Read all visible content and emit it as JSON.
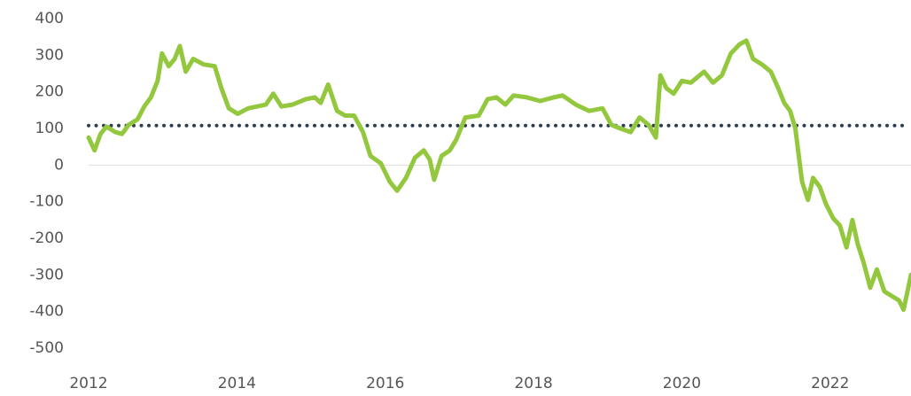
{
  "chart_data": {
    "type": "line",
    "x": [
      2012,
      2012.08,
      2012.16,
      2012.24,
      2012.36,
      2012.45,
      2012.54,
      2012.66,
      2012.75,
      2012.84,
      2012.93,
      2012.99,
      2013.08,
      2013.16,
      2013.23,
      2013.31,
      2013.41,
      2013.55,
      2013.7,
      2013.79,
      2013.89,
      2014.01,
      2014.15,
      2014.27,
      2014.39,
      2014.49,
      2014.6,
      2014.75,
      2014.93,
      2015.05,
      2015.13,
      2015.23,
      2015.35,
      2015.46,
      2015.58,
      2015.7,
      2015.8,
      2015.94,
      2016.06,
      2016.16,
      2016.28,
      2016.4,
      2016.52,
      2016.6,
      2016.66,
      2016.76,
      2016.87,
      2016.96,
      2017.08,
      2017.26,
      2017.38,
      2017.5,
      2017.62,
      2017.73,
      2017.91,
      2018.09,
      2018.27,
      2018.39,
      2018.57,
      2018.75,
      2018.93,
      2019.05,
      2019.17,
      2019.31,
      2019.43,
      2019.55,
      2019.65,
      2019.71,
      2019.79,
      2019.89,
      2020.0,
      2020.12,
      2020.3,
      2020.42,
      2020.54,
      2020.66,
      2020.78,
      2020.87,
      2020.96,
      2021.08,
      2021.2,
      2021.3,
      2021.38,
      2021.46,
      2021.53,
      2021.62,
      2021.7,
      2021.77,
      2021.86,
      2021.94,
      2022.04,
      2022.13,
      2022.22,
      2022.3,
      2022.37,
      2022.45,
      2022.54,
      2022.63,
      2022.73,
      2022.85,
      2022.93,
      2022.99,
      2023.09
    ],
    "values": [
      75,
      40,
      85,
      105,
      90,
      85,
      110,
      125,
      160,
      185,
      230,
      305,
      270,
      290,
      325,
      255,
      290,
      275,
      270,
      210,
      155,
      140,
      155,
      160,
      165,
      195,
      160,
      165,
      180,
      185,
      170,
      220,
      148,
      135,
      135,
      90,
      25,
      5,
      -45,
      -70,
      -35,
      20,
      40,
      15,
      -40,
      25,
      40,
      70,
      130,
      135,
      180,
      185,
      165,
      190,
      185,
      175,
      185,
      190,
      165,
      148,
      155,
      110,
      100,
      90,
      130,
      110,
      75,
      245,
      210,
      195,
      230,
      225,
      255,
      225,
      245,
      305,
      330,
      340,
      290,
      275,
      255,
      210,
      170,
      148,
      100,
      -45,
      -95,
      -35,
      -60,
      -105,
      -145,
      -165,
      -225,
      -150,
      -215,
      -265,
      -335,
      -285,
      -345,
      -360,
      -370,
      -395,
      -300
    ],
    "color": "#93c83e",
    "reference_line": 108,
    "reference_color": "#2c3e50",
    "xlim": [
      2012,
      2023.09
    ],
    "xticks": [
      2012,
      2014,
      2016,
      2018,
      2020,
      2022
    ],
    "ylim": [
      -500,
      400
    ],
    "yticks": [
      400,
      300,
      200,
      100,
      0,
      -100,
      -200,
      -300,
      -400,
      -500
    ]
  }
}
